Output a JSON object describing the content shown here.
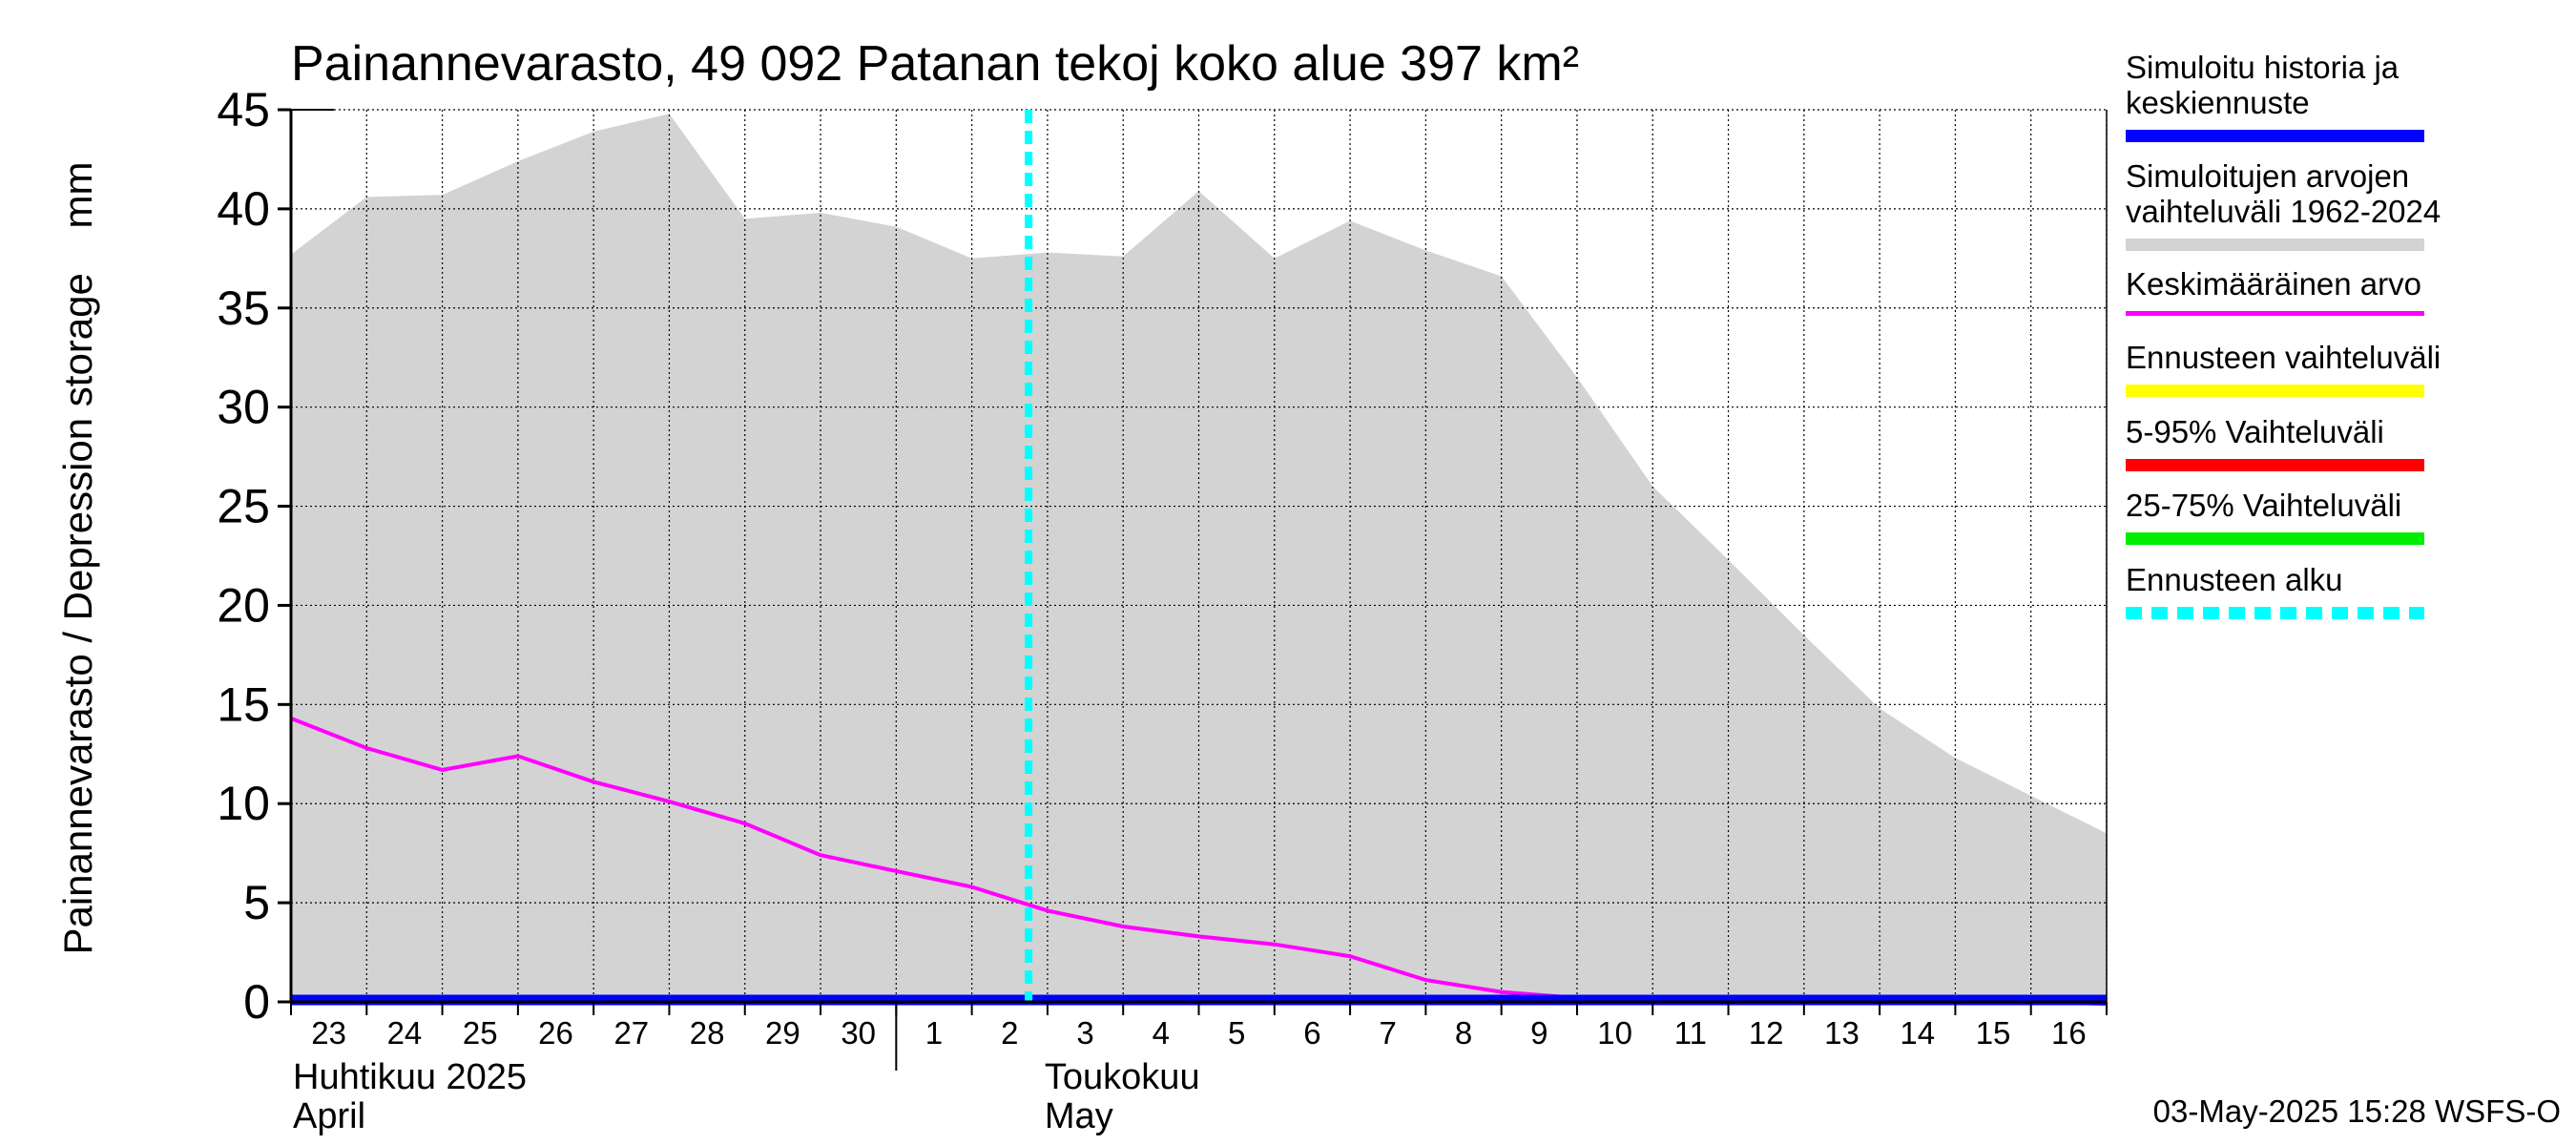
{
  "chart_data": {
    "type": "area",
    "title": "Painannevarasto, 49 092 Patanan tekoj koko alue 397 km²",
    "ylabel": "Painannevarasto / Depression storage    mm",
    "ylim": [
      0,
      45
    ],
    "yticks": [
      0,
      5,
      10,
      15,
      20,
      25,
      30,
      35,
      40,
      45
    ],
    "grid": true,
    "legend_position": "right",
    "x_tick_labels": [
      "23",
      "24",
      "25",
      "26",
      "27",
      "28",
      "29",
      "30",
      "1",
      "2",
      "3",
      "4",
      "5",
      "6",
      "7",
      "8",
      "9",
      "10",
      "11",
      "12",
      "13",
      "14",
      "15",
      "16"
    ],
    "month_labels": [
      {
        "fi": "Huhtikuu  2025",
        "en": "April"
      },
      {
        "fi": "Toukokuu",
        "en": "May"
      }
    ],
    "x": [
      "2025-04-23",
      "2025-04-24",
      "2025-04-25",
      "2025-04-26",
      "2025-04-27",
      "2025-04-28",
      "2025-04-29",
      "2025-04-30",
      "2025-05-01",
      "2025-05-02",
      "2025-05-03",
      "2025-05-04",
      "2025-05-05",
      "2025-05-06",
      "2025-05-07",
      "2025-05-08",
      "2025-05-09",
      "2025-05-10",
      "2025-05-11",
      "2025-05-12",
      "2025-05-13",
      "2025-05-14",
      "2025-05-15",
      "2025-05-16",
      "2025-05-17"
    ],
    "series": [
      {
        "name": "Simuloitujen arvojen vaihteluväli 1962-2024",
        "kind": "band",
        "color": "#d3d3d3",
        "upper": [
          37.7,
          40.6,
          40.7,
          42.4,
          43.9,
          44.8,
          39.5,
          39.8,
          39.1,
          37.5,
          37.8,
          37.6,
          40.9,
          37.5,
          39.4,
          37.9,
          36.6,
          31.5,
          26.0,
          22.3,
          18.5,
          14.8,
          12.3,
          10.4,
          8.5
        ],
        "lower": [
          0,
          0,
          0,
          0,
          0,
          0,
          0,
          0,
          0,
          0,
          0,
          0,
          0,
          0,
          0,
          0,
          0,
          0,
          0,
          0,
          0,
          0,
          0,
          0,
          0
        ]
      },
      {
        "name": "Keskimääräinen arvo",
        "kind": "line",
        "color": "#ff00ff",
        "values": [
          14.3,
          12.8,
          11.7,
          12.4,
          11.1,
          10.1,
          9.0,
          7.4,
          6.6,
          5.8,
          4.6,
          3.8,
          3.3,
          2.9,
          2.3,
          1.1,
          0.5,
          0.2,
          0.1,
          0.0,
          0.0,
          0.0,
          0.0,
          0.0,
          -0.1
        ]
      },
      {
        "name": "Simuloitu historia ja keskiennuste",
        "kind": "line",
        "color": "#0000ff",
        "values": [
          0,
          0,
          0,
          0,
          0,
          0,
          0,
          0,
          0,
          0,
          0,
          0,
          0,
          0,
          0,
          0,
          0,
          0,
          0,
          0,
          0,
          0,
          0,
          0,
          0
        ]
      }
    ],
    "forecast_start": "2025-05-02T18:00",
    "legend": [
      {
        "label": "Simuloitu historia ja\nkeskiennuste",
        "color": "#0000ff",
        "style": "solid"
      },
      {
        "label": "Simuloitujen arvojen\nvaihteluväli 1962-2024",
        "color": "#d3d3d3",
        "style": "solid"
      },
      {
        "label": "Keskimääräinen arvo",
        "color": "#ff00ff",
        "style": "solid"
      },
      {
        "label": "Ennusteen vaihteluväli",
        "color": "#ffff00",
        "style": "solid"
      },
      {
        "label": "5-95% Vaihteluväli",
        "color": "#ff0000",
        "style": "solid"
      },
      {
        "label": "25-75% Vaihteluväli",
        "color": "#00ee00",
        "style": "solid"
      },
      {
        "label": "Ennusteen alku",
        "color": "#00ffff",
        "style": "dashed"
      }
    ],
    "footer": "03-May-2025 15:28 WSFS-O"
  }
}
